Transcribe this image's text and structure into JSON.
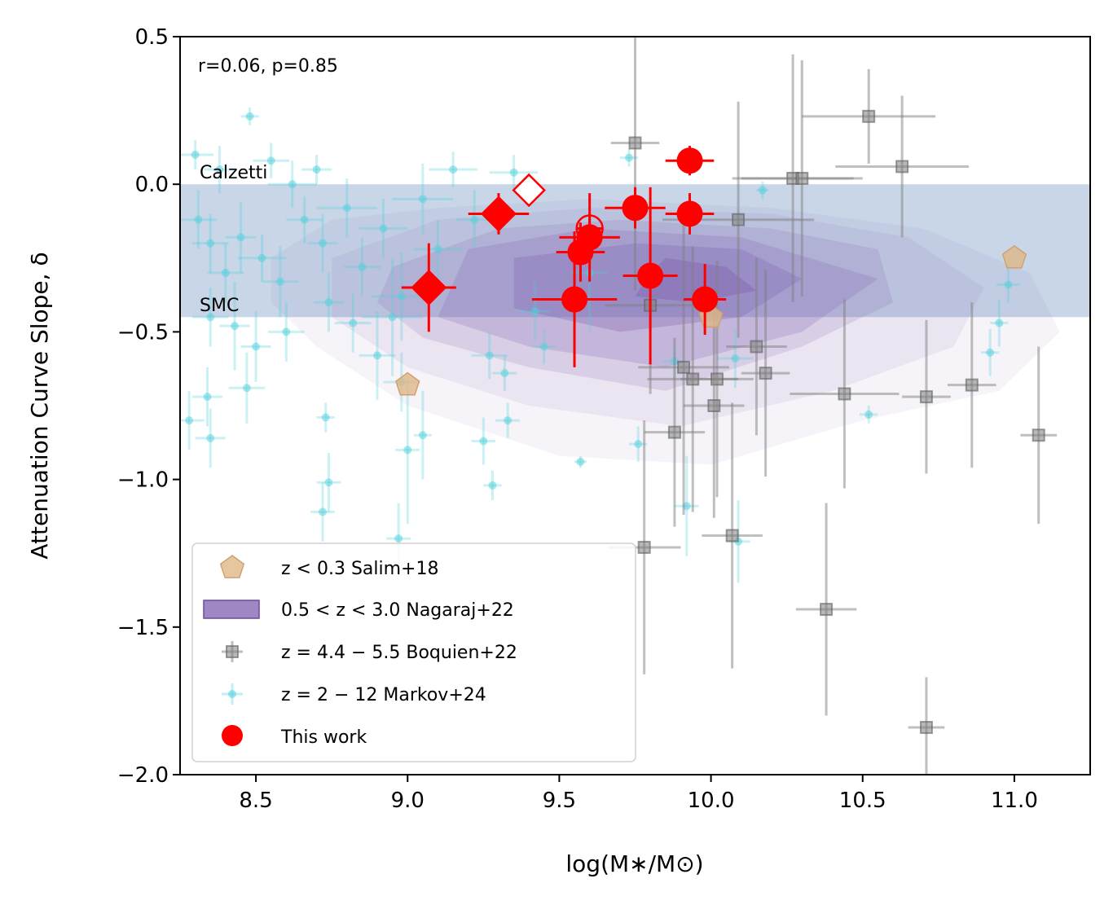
{
  "chart_data": {
    "type": "scatter",
    "title": "",
    "xlabel": "log(M∗/M⊙)",
    "ylabel": "Attenuation Curve Slope, δ",
    "xlim": [
      8.25,
      11.25
    ],
    "ylim": [
      -2.0,
      0.5
    ],
    "xticks": [
      8.5,
      9.0,
      9.5,
      10.0,
      10.5,
      11.0
    ],
    "xtick_labels": [
      "8.5",
      "9.0",
      "9.5",
      "10.0",
      "10.5",
      "11.0"
    ],
    "yticks": [
      0.5,
      0.0,
      -0.5,
      -1.0,
      -1.5,
      -2.0
    ],
    "ytick_labels": [
      "0.5",
      "0.0",
      "−0.5",
      "−1.0",
      "−1.5",
      "−2.0"
    ],
    "annotation": "r=0.06, p=0.85",
    "reference_band": {
      "y_top": 0.0,
      "y_bottom": -0.45,
      "color": "#b0c4de",
      "top_label": "Calzetti",
      "bottom_label": "SMC"
    },
    "legend": {
      "position": "lower-left",
      "entries": [
        {
          "key": "salim",
          "label": "z < 0.3 Salim+18"
        },
        {
          "key": "nagaraj",
          "label": "0.5 < z < 3.0 Nagaraj+22"
        },
        {
          "key": "boquien",
          "label": "z = 4.4 − 5.5 Boquien+22"
        },
        {
          "key": "markov",
          "label": "z = 2 − 12 Markov+24"
        },
        {
          "key": "thiswork",
          "label": "This work"
        }
      ]
    },
    "colors": {
      "salim": "#deb887",
      "nagaraj": "#7f5fb0",
      "boquien": "#808080",
      "markov": "#4fd0dc",
      "thiswork": "#ff0000"
    },
    "contours": {
      "series": "0.5 < z < 3.0 Nagaraj+22",
      "levels": [
        {
          "alpha": 0.07,
          "points": [
            [
              8.55,
              -0.25
            ],
            [
              8.75,
              -0.12
            ],
            [
              9.1,
              -0.08
            ],
            [
              9.6,
              -0.05
            ],
            [
              10.2,
              -0.08
            ],
            [
              10.7,
              -0.15
            ],
            [
              11.05,
              -0.3
            ],
            [
              11.15,
              -0.5
            ],
            [
              10.95,
              -0.7
            ],
            [
              10.5,
              -0.8
            ],
            [
              10.0,
              -0.95
            ],
            [
              9.5,
              -0.92
            ],
            [
              9.0,
              -0.75
            ],
            [
              8.7,
              -0.55
            ],
            [
              8.55,
              -0.4
            ]
          ]
        },
        {
          "alpha": 0.1,
          "points": [
            [
              8.75,
              -0.25
            ],
            [
              9.1,
              -0.12
            ],
            [
              9.6,
              -0.08
            ],
            [
              10.2,
              -0.1
            ],
            [
              10.65,
              -0.18
            ],
            [
              10.9,
              -0.35
            ],
            [
              10.8,
              -0.55
            ],
            [
              10.4,
              -0.7
            ],
            [
              9.9,
              -0.82
            ],
            [
              9.4,
              -0.75
            ],
            [
              9.0,
              -0.62
            ],
            [
              8.75,
              -0.45
            ]
          ]
        },
        {
          "alpha": 0.16,
          "points": [
            [
              8.95,
              -0.28
            ],
            [
              9.3,
              -0.15
            ],
            [
              9.7,
              -0.12
            ],
            [
              10.2,
              -0.15
            ],
            [
              10.55,
              -0.22
            ],
            [
              10.6,
              -0.4
            ],
            [
              10.3,
              -0.55
            ],
            [
              9.85,
              -0.7
            ],
            [
              9.4,
              -0.62
            ],
            [
              9.05,
              -0.52
            ],
            [
              8.9,
              -0.4
            ]
          ]
        },
        {
          "alpha": 0.22,
          "points": [
            [
              9.2,
              -0.22
            ],
            [
              9.6,
              -0.15
            ],
            [
              10.1,
              -0.18
            ],
            [
              10.55,
              -0.32
            ],
            [
              10.3,
              -0.5
            ],
            [
              9.85,
              -0.62
            ],
            [
              9.4,
              -0.55
            ],
            [
              9.1,
              -0.45
            ]
          ]
        },
        {
          "alpha": 0.3,
          "points": [
            [
              9.35,
              -0.25
            ],
            [
              9.75,
              -0.2
            ],
            [
              10.1,
              -0.22
            ],
            [
              10.3,
              -0.32
            ],
            [
              10.1,
              -0.45
            ],
            [
              9.7,
              -0.5
            ],
            [
              9.35,
              -0.42
            ]
          ]
        },
        {
          "alpha": 0.4,
          "points": [
            [
              9.85,
              -0.25
            ],
            [
              10.05,
              -0.28
            ],
            [
              10.15,
              -0.36
            ],
            [
              9.95,
              -0.4
            ],
            [
              9.75,
              -0.38
            ],
            [
              9.8,
              -0.3
            ]
          ]
        }
      ]
    },
    "series": [
      {
        "name": "z < 0.3 Salim+18",
        "key": "salim",
        "marker": "pentagon",
        "points": [
          {
            "x": 9.0,
            "y": -0.68
          },
          {
            "x": 10.0,
            "y": -0.45
          },
          {
            "x": 11.0,
            "y": -0.25
          }
        ]
      },
      {
        "name": "z = 4.4 − 5.5 Boquien+22",
        "key": "boquien",
        "marker": "square",
        "points": [
          {
            "x": 9.75,
            "y": 0.14,
            "xerr": 0.08,
            "yerr": 0.5
          },
          {
            "x": 10.52,
            "y": 0.23,
            "xerr": 0.22,
            "yerr": 0.16
          },
          {
            "x": 10.63,
            "y": 0.06,
            "xerr": 0.22,
            "yerr": 0.24
          },
          {
            "x": 10.27,
            "y": 0.02,
            "xerr": 0.2,
            "yerr": 0.42
          },
          {
            "x": 10.3,
            "y": 0.02,
            "xerr": 0.2,
            "yerr": 0.4
          },
          {
            "x": 10.09,
            "y": -0.12,
            "xerr": 0.25,
            "yerr": 0.4
          },
          {
            "x": 9.8,
            "y": -0.41,
            "xerr": 0.15,
            "yerr": 0.3
          },
          {
            "x": 9.91,
            "y": -0.62,
            "xerr": 0.15,
            "yerr": 0.5
          },
          {
            "x": 9.94,
            "y": -0.66,
            "xerr": 0.15,
            "yerr": 0.45
          },
          {
            "x": 10.02,
            "y": -0.66,
            "xerr": 0.12,
            "yerr": 0.4
          },
          {
            "x": 10.15,
            "y": -0.55,
            "xerr": 0.1,
            "yerr": 0.3
          },
          {
            "x": 10.18,
            "y": -0.64,
            "xerr": 0.08,
            "yerr": 0.35
          },
          {
            "x": 10.01,
            "y": -0.75,
            "xerr": 0.1,
            "yerr": 0.38
          },
          {
            "x": 9.88,
            "y": -0.84,
            "xerr": 0.1,
            "yerr": 0.32
          },
          {
            "x": 10.44,
            "y": -0.71,
            "xerr": 0.18,
            "yerr": 0.32
          },
          {
            "x": 10.71,
            "y": -0.72,
            "xerr": 0.08,
            "yerr": 0.26
          },
          {
            "x": 10.86,
            "y": -0.68,
            "xerr": 0.08,
            "yerr": 0.28
          },
          {
            "x": 11.08,
            "y": -0.85,
            "xerr": 0.06,
            "yerr": 0.3
          },
          {
            "x": 9.78,
            "y": -1.23,
            "xerr": 0.12,
            "yerr": 0.43
          },
          {
            "x": 10.07,
            "y": -1.19,
            "xerr": 0.1,
            "yerr": 0.45
          },
          {
            "x": 10.38,
            "y": -1.44,
            "xerr": 0.1,
            "yerr": 0.36
          },
          {
            "x": 10.71,
            "y": -1.84,
            "xerr": 0.06,
            "yerr": 0.17
          }
        ]
      },
      {
        "name": "z = 2 − 12 Markov+24",
        "key": "markov",
        "marker": "dot",
        "points": [
          {
            "x": 8.3,
            "y": 0.1,
            "xerr": 0.06,
            "yerr": 0.05
          },
          {
            "x": 8.38,
            "y": 0.05,
            "xerr": 0.05,
            "yerr": 0.08
          },
          {
            "x": 8.48,
            "y": 0.23,
            "xerr": 0.03,
            "yerr": 0.03
          },
          {
            "x": 8.55,
            "y": 0.08,
            "xerr": 0.06,
            "yerr": 0.06
          },
          {
            "x": 8.62,
            "y": 0.0,
            "xerr": 0.08,
            "yerr": 0.08
          },
          {
            "x": 8.7,
            "y": 0.05,
            "xerr": 0.05,
            "yerr": 0.05
          },
          {
            "x": 8.31,
            "y": -0.12,
            "xerr": 0.06,
            "yerr": 0.1
          },
          {
            "x": 8.35,
            "y": -0.2,
            "xerr": 0.06,
            "yerr": 0.1
          },
          {
            "x": 8.4,
            "y": -0.3,
            "xerr": 0.06,
            "yerr": 0.1
          },
          {
            "x": 8.45,
            "y": -0.18,
            "xerr": 0.05,
            "yerr": 0.12
          },
          {
            "x": 8.52,
            "y": -0.25,
            "xerr": 0.08,
            "yerr": 0.08
          },
          {
            "x": 8.58,
            "y": -0.33,
            "xerr": 0.06,
            "yerr": 0.12
          },
          {
            "x": 8.66,
            "y": -0.12,
            "xerr": 0.06,
            "yerr": 0.08
          },
          {
            "x": 8.72,
            "y": -0.2,
            "xerr": 0.05,
            "yerr": 0.1
          },
          {
            "x": 8.8,
            "y": -0.08,
            "xerr": 0.1,
            "yerr": 0.1
          },
          {
            "x": 8.85,
            "y": -0.28,
            "xerr": 0.06,
            "yerr": 0.1
          },
          {
            "x": 8.92,
            "y": -0.15,
            "xerr": 0.08,
            "yerr": 0.1
          },
          {
            "x": 8.98,
            "y": -0.38,
            "xerr": 0.1,
            "yerr": 0.15
          },
          {
            "x": 9.05,
            "y": -0.05,
            "xerr": 0.1,
            "yerr": 0.12
          },
          {
            "x": 9.1,
            "y": -0.22,
            "xerr": 0.08,
            "yerr": 0.1
          },
          {
            "x": 9.15,
            "y": 0.05,
            "xerr": 0.08,
            "yerr": 0.06
          },
          {
            "x": 9.22,
            "y": -0.12,
            "xerr": 0.06,
            "yerr": 0.1
          },
          {
            "x": 8.35,
            "y": -0.45,
            "xerr": 0.06,
            "yerr": 0.1
          },
          {
            "x": 8.43,
            "y": -0.48,
            "xerr": 0.05,
            "yerr": 0.15
          },
          {
            "x": 8.5,
            "y": -0.55,
            "xerr": 0.05,
            "yerr": 0.12
          },
          {
            "x": 8.6,
            "y": -0.5,
            "xerr": 0.06,
            "yerr": 0.1
          },
          {
            "x": 8.74,
            "y": -0.4,
            "xerr": 0.05,
            "yerr": 0.1
          },
          {
            "x": 8.82,
            "y": -0.47,
            "xerr": 0.06,
            "yerr": 0.1
          },
          {
            "x": 8.9,
            "y": -0.58,
            "xerr": 0.06,
            "yerr": 0.15
          },
          {
            "x": 8.95,
            "y": -0.45,
            "xerr": 0.1,
            "yerr": 0.2
          },
          {
            "x": 8.98,
            "y": -0.67,
            "xerr": 0.06,
            "yerr": 0.1
          },
          {
            "x": 8.28,
            "y": -0.8,
            "xerr": 0.05,
            "yerr": 0.1
          },
          {
            "x": 8.35,
            "y": -0.86,
            "xerr": 0.05,
            "yerr": 0.1
          },
          {
            "x": 8.34,
            "y": -0.72,
            "xerr": 0.05,
            "yerr": 0.1
          },
          {
            "x": 8.47,
            "y": -0.69,
            "xerr": 0.06,
            "yerr": 0.12
          },
          {
            "x": 8.73,
            "y": -0.79,
            "xerr": 0.03,
            "yerr": 0.05
          },
          {
            "x": 8.74,
            "y": -1.01,
            "xerr": 0.04,
            "yerr": 0.1
          },
          {
            "x": 8.72,
            "y": -1.11,
            "xerr": 0.04,
            "yerr": 0.1
          },
          {
            "x": 8.97,
            "y": -1.2,
            "xerr": 0.04,
            "yerr": 0.12
          },
          {
            "x": 9.0,
            "y": -0.9,
            "xerr": 0.04,
            "yerr": 0.25
          },
          {
            "x": 9.05,
            "y": -0.85,
            "xerr": 0.03,
            "yerr": 0.15
          },
          {
            "x": 9.25,
            "y": -0.87,
            "xerr": 0.04,
            "yerr": 0.08
          },
          {
            "x": 9.28,
            "y": -1.02,
            "xerr": 0.03,
            "yerr": 0.05
          },
          {
            "x": 9.33,
            "y": -0.8,
            "xerr": 0.04,
            "yerr": 0.06
          },
          {
            "x": 9.27,
            "y": -0.58,
            "xerr": 0.06,
            "yerr": 0.08
          },
          {
            "x": 9.32,
            "y": -0.64,
            "xerr": 0.04,
            "yerr": 0.06
          },
          {
            "x": 9.45,
            "y": -0.55,
            "xerr": 0.04,
            "yerr": 0.06
          },
          {
            "x": 9.57,
            "y": -0.94,
            "xerr": 0.02,
            "yerr": 0.02
          },
          {
            "x": 9.76,
            "y": -0.88,
            "xerr": 0.03,
            "yerr": 0.06
          },
          {
            "x": 9.88,
            "y": -0.6,
            "xerr": 0.04,
            "yerr": 0.06
          },
          {
            "x": 9.92,
            "y": -1.09,
            "xerr": 0.04,
            "yerr": 0.17
          },
          {
            "x": 10.08,
            "y": -0.59,
            "xerr": 0.06,
            "yerr": 0.1
          },
          {
            "x": 10.09,
            "y": -1.21,
            "xerr": 0.04,
            "yerr": 0.14
          },
          {
            "x": 10.17,
            "y": -0.02,
            "xerr": 0.02,
            "yerr": 0.03
          },
          {
            "x": 10.52,
            "y": -0.78,
            "xerr": 0.03,
            "yerr": 0.03
          },
          {
            "x": 10.98,
            "y": -0.34,
            "xerr": 0.04,
            "yerr": 0.06
          },
          {
            "x": 10.95,
            "y": -0.47,
            "xerr": 0.03,
            "yerr": 0.08
          },
          {
            "x": 10.92,
            "y": -0.57,
            "xerr": 0.03,
            "yerr": 0.08
          },
          {
            "x": 9.73,
            "y": 0.09,
            "xerr": 0.03,
            "yerr": 0.03
          },
          {
            "x": 9.35,
            "y": 0.04,
            "xerr": 0.08,
            "yerr": 0.06
          },
          {
            "x": 9.6,
            "y": -0.3,
            "xerr": 0.06,
            "yerr": 0.2
          },
          {
            "x": 9.42,
            "y": -0.43,
            "xerr": 0.05,
            "yerr": 0.1
          }
        ]
      },
      {
        "name": "This work",
        "key": "thiswork",
        "points": [
          {
            "x": 9.93,
            "y": 0.08,
            "xerr": 0.08,
            "yerr": 0.05,
            "marker": "circle"
          },
          {
            "x": 9.75,
            "y": -0.08,
            "xerr": 0.1,
            "yerr": 0.07,
            "marker": "circle"
          },
          {
            "x": 9.93,
            "y": -0.1,
            "xerr": 0.08,
            "yerr": 0.07,
            "marker": "circle"
          },
          {
            "x": 9.6,
            "y": -0.18,
            "xerr": 0.1,
            "yerr": 0.15,
            "marker": "circle"
          },
          {
            "x": 9.57,
            "y": -0.23,
            "xerr": 0.08,
            "yerr": 0.1,
            "marker": "circle"
          },
          {
            "x": 9.6,
            "y": -0.15,
            "xerr": 0.04,
            "yerr": 0.05,
            "marker": "circle-open"
          },
          {
            "x": 9.8,
            "y": -0.31,
            "xerr": 0.09,
            "yerr": 0.3,
            "marker": "circle"
          },
          {
            "x": 9.98,
            "y": -0.39,
            "xerr": 0.07,
            "yerr": 0.12,
            "marker": "circle"
          },
          {
            "x": 9.55,
            "y": -0.39,
            "xerr": 0.14,
            "yerr": 0.23,
            "marker": "circle"
          },
          {
            "x": 9.07,
            "y": -0.35,
            "xerr": 0.09,
            "yerr": 0.15,
            "marker": "diamond"
          },
          {
            "x": 9.3,
            "y": -0.1,
            "xerr": 0.1,
            "yerr": 0.07,
            "marker": "diamond"
          },
          {
            "x": 9.4,
            "y": -0.02,
            "xerr": 0.02,
            "yerr": 0.03,
            "marker": "diamond-open"
          }
        ]
      }
    ]
  }
}
